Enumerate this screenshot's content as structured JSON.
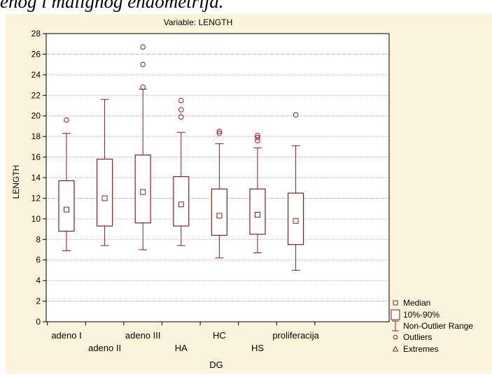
{
  "caption": "enog i malignog endometrija.",
  "chart_data": {
    "type": "box",
    "title": "Variable: LENGTH",
    "xlabel": "DG",
    "ylabel": "LENGTH",
    "ylim": [
      0,
      28
    ],
    "yticks": [
      0,
      2,
      4,
      6,
      8,
      10,
      12,
      14,
      16,
      18,
      20,
      22,
      24,
      26,
      28
    ],
    "grid": true,
    "legend_position": "bottom-right",
    "categories": [
      "adeno I",
      "adeno II",
      "adeno III",
      "HA",
      "HC",
      "HS",
      "proliferacija"
    ],
    "boxes": [
      {
        "name": "adeno I",
        "median": 10.9,
        "q10": 8.8,
        "q90": 13.7,
        "min": 6.9,
        "max": 18.3,
        "outliers": [
          19.6
        ]
      },
      {
        "name": "adeno II",
        "median": 12.0,
        "q10": 9.3,
        "q90": 15.8,
        "min": 7.4,
        "max": 21.6,
        "outliers": []
      },
      {
        "name": "adeno III",
        "median": 12.6,
        "q10": 9.6,
        "q90": 16.2,
        "min": 7.0,
        "max": 22.6,
        "outliers": [
          22.8,
          25.0,
          26.7
        ]
      },
      {
        "name": "HA",
        "median": 11.4,
        "q10": 9.3,
        "q90": 14.1,
        "min": 7.4,
        "max": 18.4,
        "outliers": [
          19.9,
          20.6,
          21.5
        ]
      },
      {
        "name": "HC",
        "median": 10.3,
        "q10": 8.4,
        "q90": 12.9,
        "min": 6.2,
        "max": 17.3,
        "outliers": [
          18.3,
          18.5
        ]
      },
      {
        "name": "HS",
        "median": 10.4,
        "q10": 8.5,
        "q90": 12.9,
        "min": 6.7,
        "max": 16.9,
        "outliers": [
          17.6,
          17.9,
          18.1
        ]
      },
      {
        "name": "proliferacija",
        "median": 9.8,
        "q10": 7.5,
        "q90": 12.5,
        "min": 5.0,
        "max": 17.1,
        "outliers": [
          20.1
        ]
      }
    ],
    "legend": [
      "Median",
      "10%-90%",
      "Non-Outlier Range",
      "Outliers",
      "Extremes"
    ],
    "colors": {
      "series": "#8b1c1c",
      "grid": "#aaaaaa",
      "frame": "#000000",
      "background": "#fcf3dc",
      "plot_background": "#ffffff"
    }
  }
}
